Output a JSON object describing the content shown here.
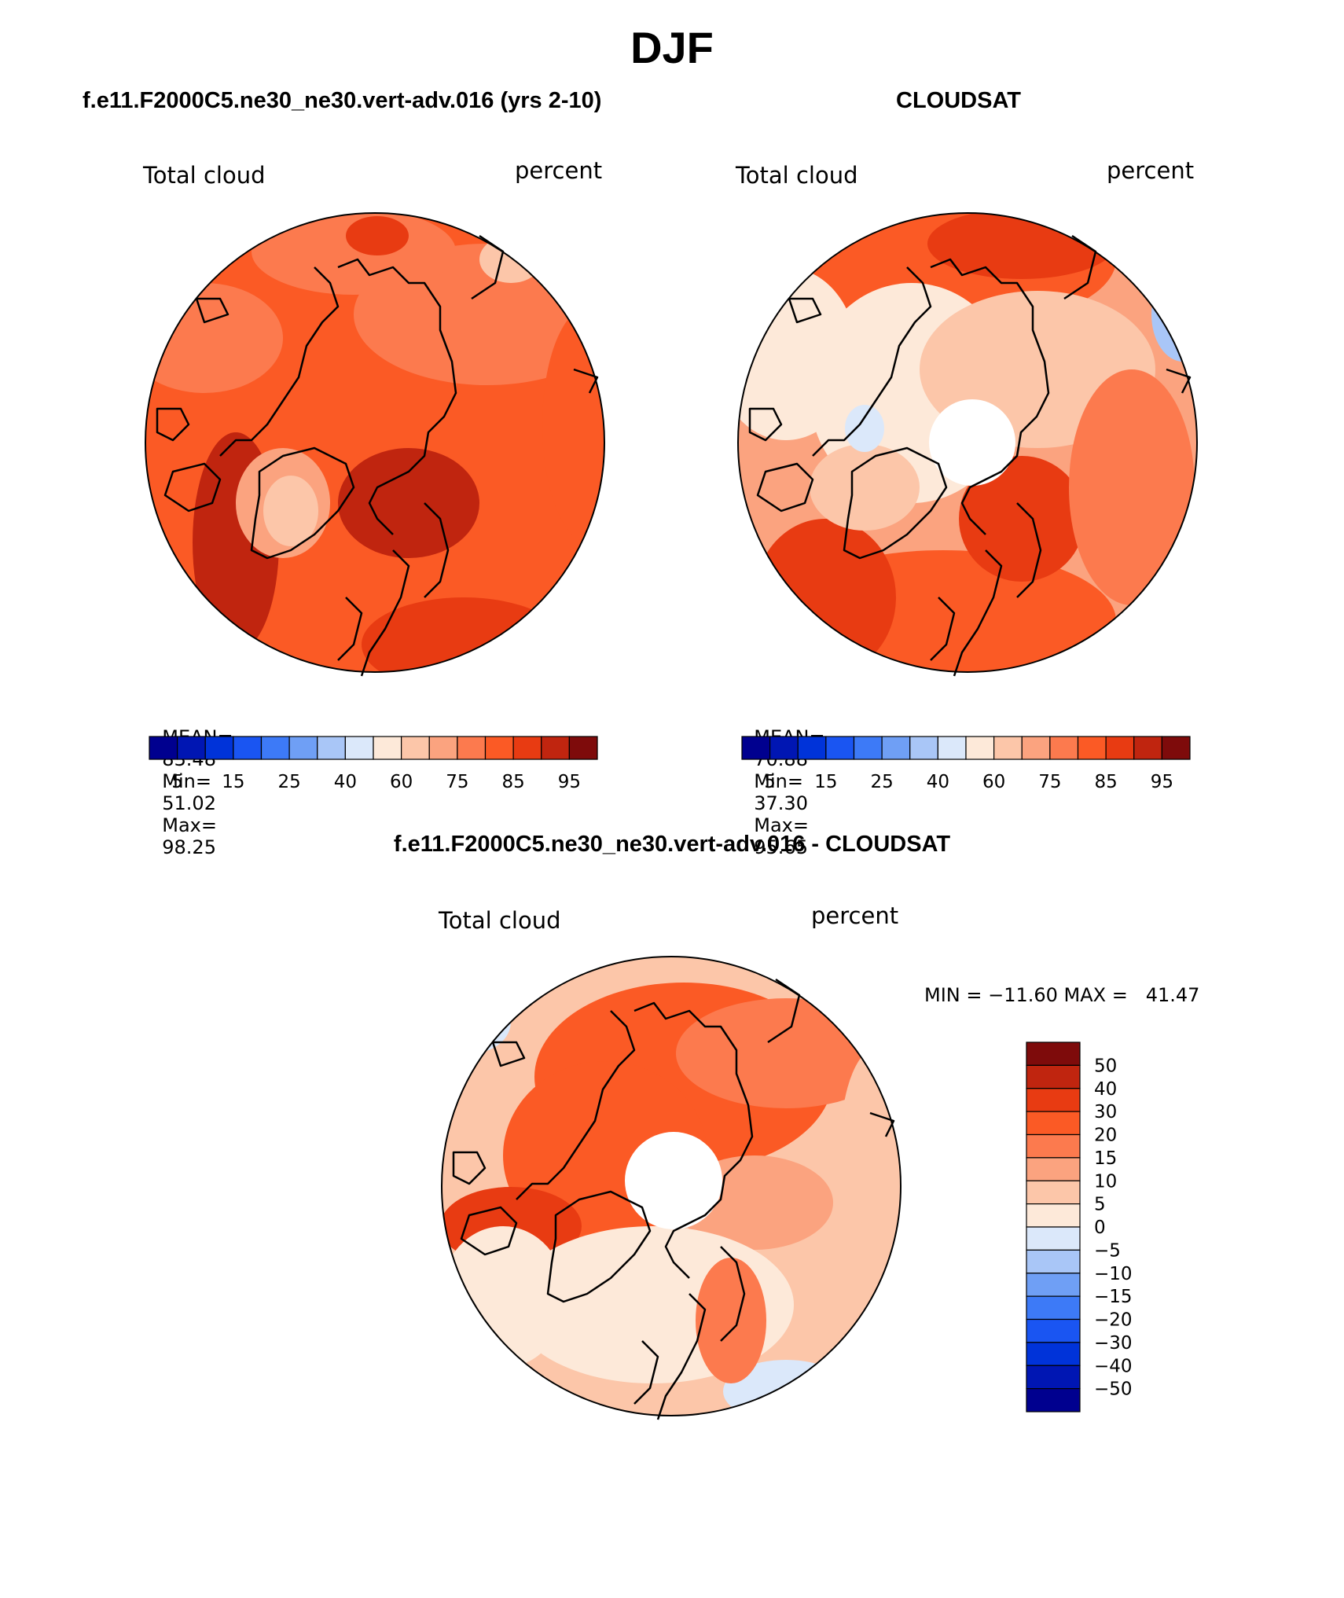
{
  "figure": {
    "title": "DJF"
  },
  "panels": [
    {
      "id": "model",
      "heading": "f.e11.F2000C5.ne30_ne30.vert-adv.016 (yrs 2-10)",
      "left_label": "Total cloud",
      "right_label": "percent",
      "stats": {
        "mean_label": "MEAN=",
        "mean": "83.48",
        "min_label": "Min=",
        "min": "51.02",
        "max_label": "Max=",
        "max": "98.25"
      },
      "colorbar_ticks": [
        "5",
        "15",
        "25",
        "40",
        "60",
        "75",
        "85",
        "95"
      ]
    },
    {
      "id": "obs",
      "heading": "CLOUDSAT",
      "left_label": "Total cloud",
      "right_label": "percent",
      "stats": {
        "mean_label": "MEAN=",
        "mean": "70.88",
        "min_label": "Min=",
        "min": "37.30",
        "max_label": "Max=",
        "max": "95.65"
      },
      "colorbar_ticks": [
        "5",
        "15",
        "25",
        "40",
        "60",
        "75",
        "85",
        "95"
      ]
    },
    {
      "id": "diff",
      "heading": "f.e11.F2000C5.ne30_ne30.vert-adv.016 - CLOUDSAT",
      "left_label": "Total cloud",
      "right_label": "percent",
      "stats": {
        "text": "MIN = −11.60 MAX =   41.47"
      },
      "colorbar_ticks": [
        "50",
        "40",
        "30",
        "20",
        "15",
        "10",
        "5",
        "0",
        "−5",
        "−10",
        "−15",
        "−20",
        "−30",
        "−40",
        "−50"
      ]
    }
  ],
  "palettes": {
    "sequential": [
      "#00008f",
      "#0016b3",
      "#0033d9",
      "#1a55f2",
      "#3d7af7",
      "#6f9ff5",
      "#a9c6f7",
      "#dbe8fa",
      "#fde9d9",
      "#fcc6a9",
      "#fba37f",
      "#fc7a4e",
      "#fb5a25",
      "#e83b12",
      "#c0250f",
      "#7e0b0b"
    ],
    "difference": [
      "#7e0b0b",
      "#c0250f",
      "#e83b12",
      "#fb5a25",
      "#fc7a4e",
      "#fba37f",
      "#fcc6a9",
      "#fde9d9",
      "#dbe8fa",
      "#a9c6f7",
      "#6f9ff5",
      "#3d7af7",
      "#1a55f2",
      "#0033d9",
      "#0016b3",
      "#00008f"
    ]
  }
}
